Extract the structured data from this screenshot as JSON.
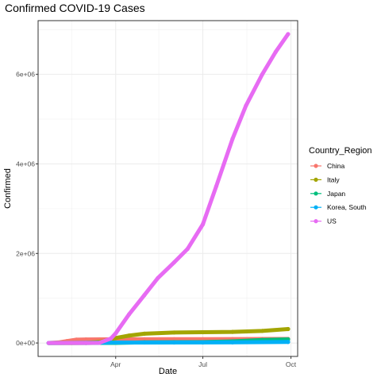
{
  "chart_data": {
    "type": "line",
    "title": "Confirmed COVID-19 Cases",
    "xlabel": "Date",
    "ylabel": "Confirmed",
    "x_ticks": [
      "Apr",
      "Jul",
      "Oct"
    ],
    "y_ticks": [
      "0e+00",
      "2e+06",
      "4e+06",
      "6e+06"
    ],
    "y_tick_values": [
      0,
      2000000,
      4000000,
      6000000
    ],
    "ylim": [
      -300000,
      7200000
    ],
    "xlim": [
      "2020-01-11",
      "2020-10-08"
    ],
    "grid": true,
    "legend_title": "Country_Region",
    "legend_position": "right",
    "series": [
      {
        "name": "China",
        "color": "#F8766D",
        "x": [
          "2020-01-22",
          "2020-02-01",
          "2020-02-10",
          "2020-02-20",
          "2020-03-01",
          "2020-03-15",
          "2020-04-01",
          "2020-05-01",
          "2020-06-01",
          "2020-07-01",
          "2020-08-01",
          "2020-09-01",
          "2020-09-28"
        ],
        "values": [
          548,
          11791,
          42638,
          75077,
          79968,
          81020,
          82361,
          84385,
          84597,
          84830,
          87480,
          90140,
          90500
        ]
      },
      {
        "name": "Italy",
        "color": "#A3A500",
        "x": [
          "2020-01-22",
          "2020-02-15",
          "2020-03-01",
          "2020-03-15",
          "2020-04-01",
          "2020-04-15",
          "2020-05-01",
          "2020-06-01",
          "2020-07-01",
          "2020-08-01",
          "2020-09-01",
          "2020-09-28"
        ],
        "values": [
          0,
          3,
          1694,
          24747,
          110574,
          165155,
          207428,
          233197,
          240760,
          248070,
          270189,
          311364
        ]
      },
      {
        "name": "Japan",
        "color": "#00BF7D",
        "x": [
          "2020-01-22",
          "2020-03-01",
          "2020-04-01",
          "2020-05-01",
          "2020-06-01",
          "2020-07-01",
          "2020-08-01",
          "2020-09-01",
          "2020-09-28"
        ],
        "values": [
          2,
          256,
          2384,
          14305,
          16911,
          18874,
          37522,
          68392,
          82000
        ]
      },
      {
        "name": "Korea, South",
        "color": "#00B0F6",
        "x": [
          "2020-01-22",
          "2020-03-01",
          "2020-04-01",
          "2020-05-01",
          "2020-06-01",
          "2020-07-01",
          "2020-08-01",
          "2020-09-01",
          "2020-09-28"
        ],
        "values": [
          1,
          3736,
          9887,
          10774,
          11503,
          12904,
          14389,
          20182,
          23699
        ]
      },
      {
        "name": "US",
        "color": "#E76BF3",
        "x": [
          "2020-01-22",
          "2020-03-01",
          "2020-03-15",
          "2020-03-27",
          "2020-04-01",
          "2020-04-15",
          "2020-05-01",
          "2020-05-15",
          "2020-06-01",
          "2020-06-15",
          "2020-07-01",
          "2020-07-15",
          "2020-08-01",
          "2020-08-15",
          "2020-09-01",
          "2020-09-15",
          "2020-09-28"
        ],
        "values": [
          1,
          30,
          3500,
          100000,
          215000,
          640000,
          1070000,
          1450000,
          1800000,
          2100000,
          2650000,
          3500000,
          4560000,
          5300000,
          6000000,
          6500000,
          6900000
        ]
      }
    ]
  }
}
